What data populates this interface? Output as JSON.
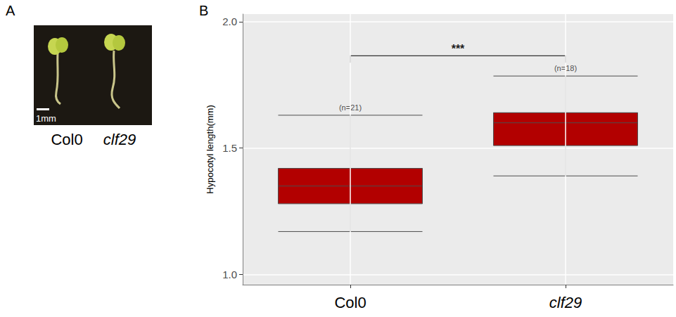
{
  "chart_data": {
    "type": "boxplot",
    "panel_label": "B",
    "y_label": "Hypocotyl length(mm)",
    "categories": [
      "Col0",
      "clf29"
    ],
    "boxes": [
      {
        "min": 1.17,
        "q1": 1.28,
        "median": 1.35,
        "q3": 1.42,
        "max": 1.63
      },
      {
        "min": 1.39,
        "q1": 1.51,
        "median": 1.6,
        "q3": 1.64,
        "max": 1.785
      }
    ],
    "color": "#b20000",
    "ylim": [
      0.96,
      2.03
    ],
    "yticks": [
      {
        "value": 1,
        "label": "1.0"
      },
      1.5,
      {
        "value": 2,
        "label": "2.0"
      }
    ],
    "grid": true,
    "annotations": [
      {
        "text": "(n=21)",
        "x": "Col0",
        "y": 1.66
      },
      {
        "text": "(n=18)",
        "x": "clf29",
        "y": 1.815
      }
    ],
    "significance": {
      "text": "***",
      "from": "Col0",
      "to": "clf29",
      "y": 1.865
    }
  },
  "panel_a": {
    "panel_label": "A",
    "scale_bar": "1mm",
    "labels": [
      "Col0",
      "clf29"
    ]
  }
}
